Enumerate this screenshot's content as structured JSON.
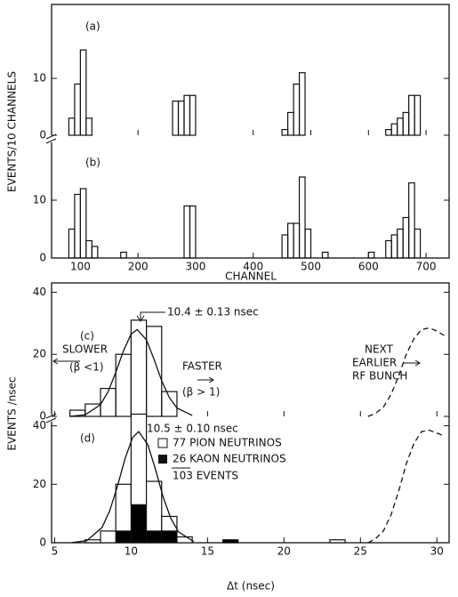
{
  "chart_data": [
    {
      "type": "histogram",
      "label": "(a)",
      "ylabel": "EVENTS/10 CHANNELS",
      "xlim": [
        50,
        740
      ],
      "ylim": [
        0,
        23
      ],
      "yticks": [
        0,
        10
      ],
      "xticks": [
        100,
        200,
        300,
        400,
        500,
        600,
        700
      ],
      "show_xtick_labels": false,
      "bins": [
        50,
        60,
        70,
        80,
        90,
        100,
        110,
        120,
        130,
        140,
        150,
        160,
        170,
        180,
        190,
        200,
        210,
        220,
        230,
        240,
        250,
        260,
        270,
        280,
        290,
        300,
        310,
        320,
        330,
        340,
        350,
        360,
        370,
        380,
        390,
        400,
        410,
        420,
        430,
        440,
        450,
        460,
        470,
        480,
        490,
        500,
        510,
        520,
        530,
        540,
        550,
        560,
        570,
        580,
        590,
        600,
        610,
        620,
        630,
        640,
        650,
        660,
        670,
        680,
        690,
        700,
        710,
        720,
        730,
        740
      ],
      "counts": [
        0,
        0,
        0,
        3,
        9,
        15,
        3,
        0,
        0,
        0,
        0,
        0,
        0,
        0,
        0,
        0,
        0,
        0,
        0,
        0,
        0,
        6,
        6,
        7,
        7,
        0,
        0,
        0,
        0,
        0,
        0,
        0,
        0,
        0,
        0,
        0,
        0,
        0,
        0,
        0,
        1,
        4,
        9,
        11,
        0,
        0,
        0,
        0,
        0,
        0,
        0,
        0,
        0,
        0,
        0,
        0,
        0,
        0,
        1,
        2,
        3,
        4,
        7,
        7,
        0,
        0,
        0,
        0,
        0
      ],
      "color": "#000000"
    },
    {
      "type": "histogram",
      "label": "(b)",
      "xlabel": "CHANNEL",
      "xlim": [
        50,
        740
      ],
      "ylim": [
        0,
        20
      ],
      "yticks": [
        0,
        10
      ],
      "xticks": [
        100,
        200,
        300,
        400,
        500,
        600,
        700
      ],
      "show_xtick_labels": true,
      "bins": [
        50,
        60,
        70,
        80,
        90,
        100,
        110,
        120,
        130,
        140,
        150,
        160,
        170,
        180,
        190,
        200,
        210,
        220,
        230,
        240,
        250,
        260,
        270,
        280,
        290,
        300,
        310,
        320,
        330,
        340,
        350,
        360,
        370,
        380,
        390,
        400,
        410,
        420,
        430,
        440,
        450,
        460,
        470,
        480,
        490,
        500,
        510,
        520,
        530,
        540,
        550,
        560,
        570,
        580,
        590,
        600,
        610,
        620,
        630,
        640,
        650,
        660,
        670,
        680,
        690,
        700,
        710,
        720,
        730,
        740
      ],
      "counts": [
        0,
        0,
        0,
        5,
        11,
        12,
        3,
        2,
        0,
        0,
        0,
        0,
        1,
        0,
        0,
        0,
        0,
        0,
        0,
        0,
        0,
        0,
        0,
        9,
        9,
        0,
        0,
        0,
        0,
        0,
        0,
        0,
        0,
        0,
        0,
        0,
        0,
        0,
        0,
        0,
        4,
        6,
        6,
        14,
        5,
        0,
        0,
        1,
        0,
        0,
        0,
        0,
        0,
        0,
        0,
        1,
        0,
        0,
        3,
        4,
        5,
        7,
        13,
        5,
        0,
        0,
        0,
        0,
        0
      ],
      "color": "#000000"
    },
    {
      "type": "histogram",
      "label": "(c)",
      "ylabel": "EVENTS /nsec",
      "xlim": [
        4.8,
        30.8
      ],
      "ylim": [
        0,
        43
      ],
      "yticks": [
        0,
        20,
        40
      ],
      "xticks": [
        5,
        10,
        15,
        20,
        25,
        30
      ],
      "show_xtick_labels": false,
      "bins": [
        6,
        7,
        8,
        9,
        10,
        11,
        12,
        13
      ],
      "counts": [
        2,
        4,
        9,
        20,
        31,
        29,
        8
      ],
      "color": "#000000",
      "curve": {
        "x": [
          6,
          7,
          8,
          8.5,
          9,
          9.5,
          10,
          10.4,
          11,
          11.5,
          12,
          12.5,
          13,
          14
        ],
        "y": [
          0.03,
          0.5,
          3.8,
          8,
          14.2,
          21.1,
          26.5,
          28,
          24.7,
          18.4,
          11.5,
          6.1,
          2.7,
          0.3
        ]
      },
      "dashed_curve": {
        "x": [
          25.5,
          26,
          26.5,
          27,
          27.5,
          28,
          28.5,
          29,
          29.5,
          30,
          30.5
        ],
        "y": [
          0,
          1,
          3,
          7,
          13,
          20,
          25,
          28,
          28.5,
          27.5,
          26
        ]
      },
      "annotations": [
        "10.4 ± 0.13 nsec",
        "SLOWER",
        "(β <1)",
        "FASTER",
        "(β > 1)",
        "NEXT",
        "EARLIER",
        "RF BUNCH"
      ]
    },
    {
      "type": "histogram",
      "label": "(d)",
      "xlabel": "Δt (nsec)",
      "xlim": [
        4.8,
        30.8
      ],
      "ylim": [
        0,
        42
      ],
      "yticks": [
        0,
        20,
        40
      ],
      "xticks": [
        5,
        10,
        15,
        20,
        25,
        30
      ],
      "show_xtick_labels": true,
      "bins": [
        7,
        8,
        9,
        10,
        11,
        12,
        13,
        14,
        15,
        16,
        17,
        18,
        19,
        20,
        21,
        22,
        23,
        24
      ],
      "series": [
        {
          "name": "26 KAON NEUTRINOS",
          "color": "#000000",
          "values": [
            0,
            0,
            4,
            13,
            4,
            4,
            0,
            0,
            0,
            1,
            0,
            0,
            0,
            0,
            0,
            0,
            0
          ]
        },
        {
          "name": "77 PION NEUTRINOS",
          "color": "#ffffff",
          "values": [
            1,
            4,
            16,
            31,
            17,
            5,
            2,
            0,
            0,
            0,
            0,
            0,
            0,
            0,
            0,
            0,
            1
          ]
        }
      ],
      "curve": {
        "x": [
          6.1,
          7.1,
          8.1,
          8.6,
          9.1,
          9.6,
          10.1,
          10.5,
          11.1,
          11.6,
          12.1,
          12.6,
          13.1,
          14.1
        ],
        "y": [
          0.04,
          0.7,
          5.2,
          10.9,
          19.2,
          28.7,
          36,
          38,
          33.5,
          25,
          15.6,
          8.3,
          3.7,
          0.4
        ]
      },
      "dashed_curve": {
        "x": [
          25.5,
          26,
          26.5,
          27,
          27.5,
          28,
          28.5,
          29,
          29.5,
          30,
          30.5
        ],
        "y": [
          0,
          1.4,
          4,
          9.5,
          17.6,
          27,
          34,
          38,
          38.5,
          37.5,
          36.5
        ]
      },
      "annotations": [
        "10.5 ± 0.10 nsec",
        "103 EVENTS"
      ]
    }
  ]
}
